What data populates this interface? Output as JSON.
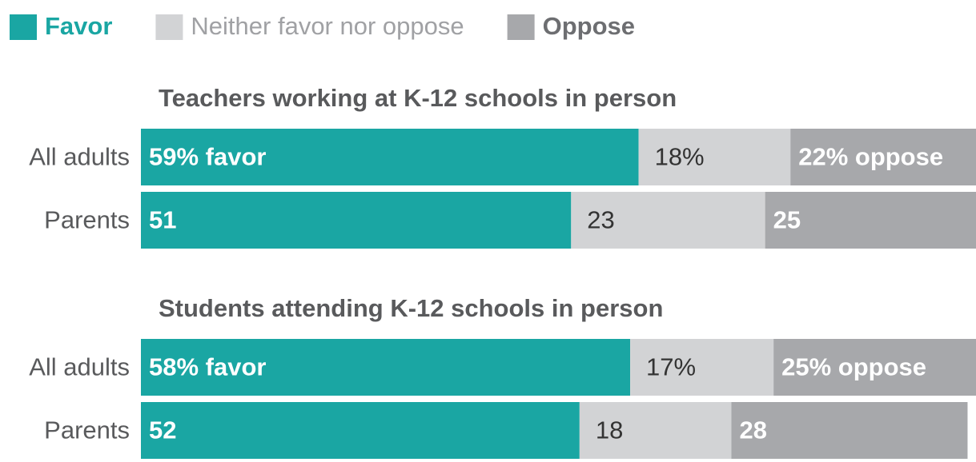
{
  "chart_data": {
    "type": "bar",
    "orientation": "horizontal",
    "stacked": true,
    "series": [
      {
        "name": "Favor",
        "color": "#1aa6a3"
      },
      {
        "name": "Neither favor nor oppose",
        "color": "#d2d3d5"
      },
      {
        "name": "Oppose",
        "color": "#a7a8ab"
      }
    ],
    "panels": [
      {
        "title": "Teachers working at K-12 schools in person",
        "categories": [
          "All adults",
          "Parents"
        ],
        "values": [
          [
            59,
            18,
            22
          ],
          [
            51,
            23,
            25
          ]
        ],
        "value_labels": [
          [
            "59% favor",
            "18%",
            "22% oppose"
          ],
          [
            "51",
            "23",
            "25"
          ]
        ]
      },
      {
        "title": "Students attending K-12 schools in person",
        "categories": [
          "All adults",
          "Parents"
        ],
        "values": [
          [
            58,
            17,
            25
          ],
          [
            52,
            18,
            28
          ]
        ],
        "value_labels": [
          [
            "58% favor",
            "17%",
            "25% oppose"
          ],
          [
            "52",
            "18",
            "28"
          ]
        ]
      }
    ],
    "xlim": [
      0,
      99
    ]
  }
}
